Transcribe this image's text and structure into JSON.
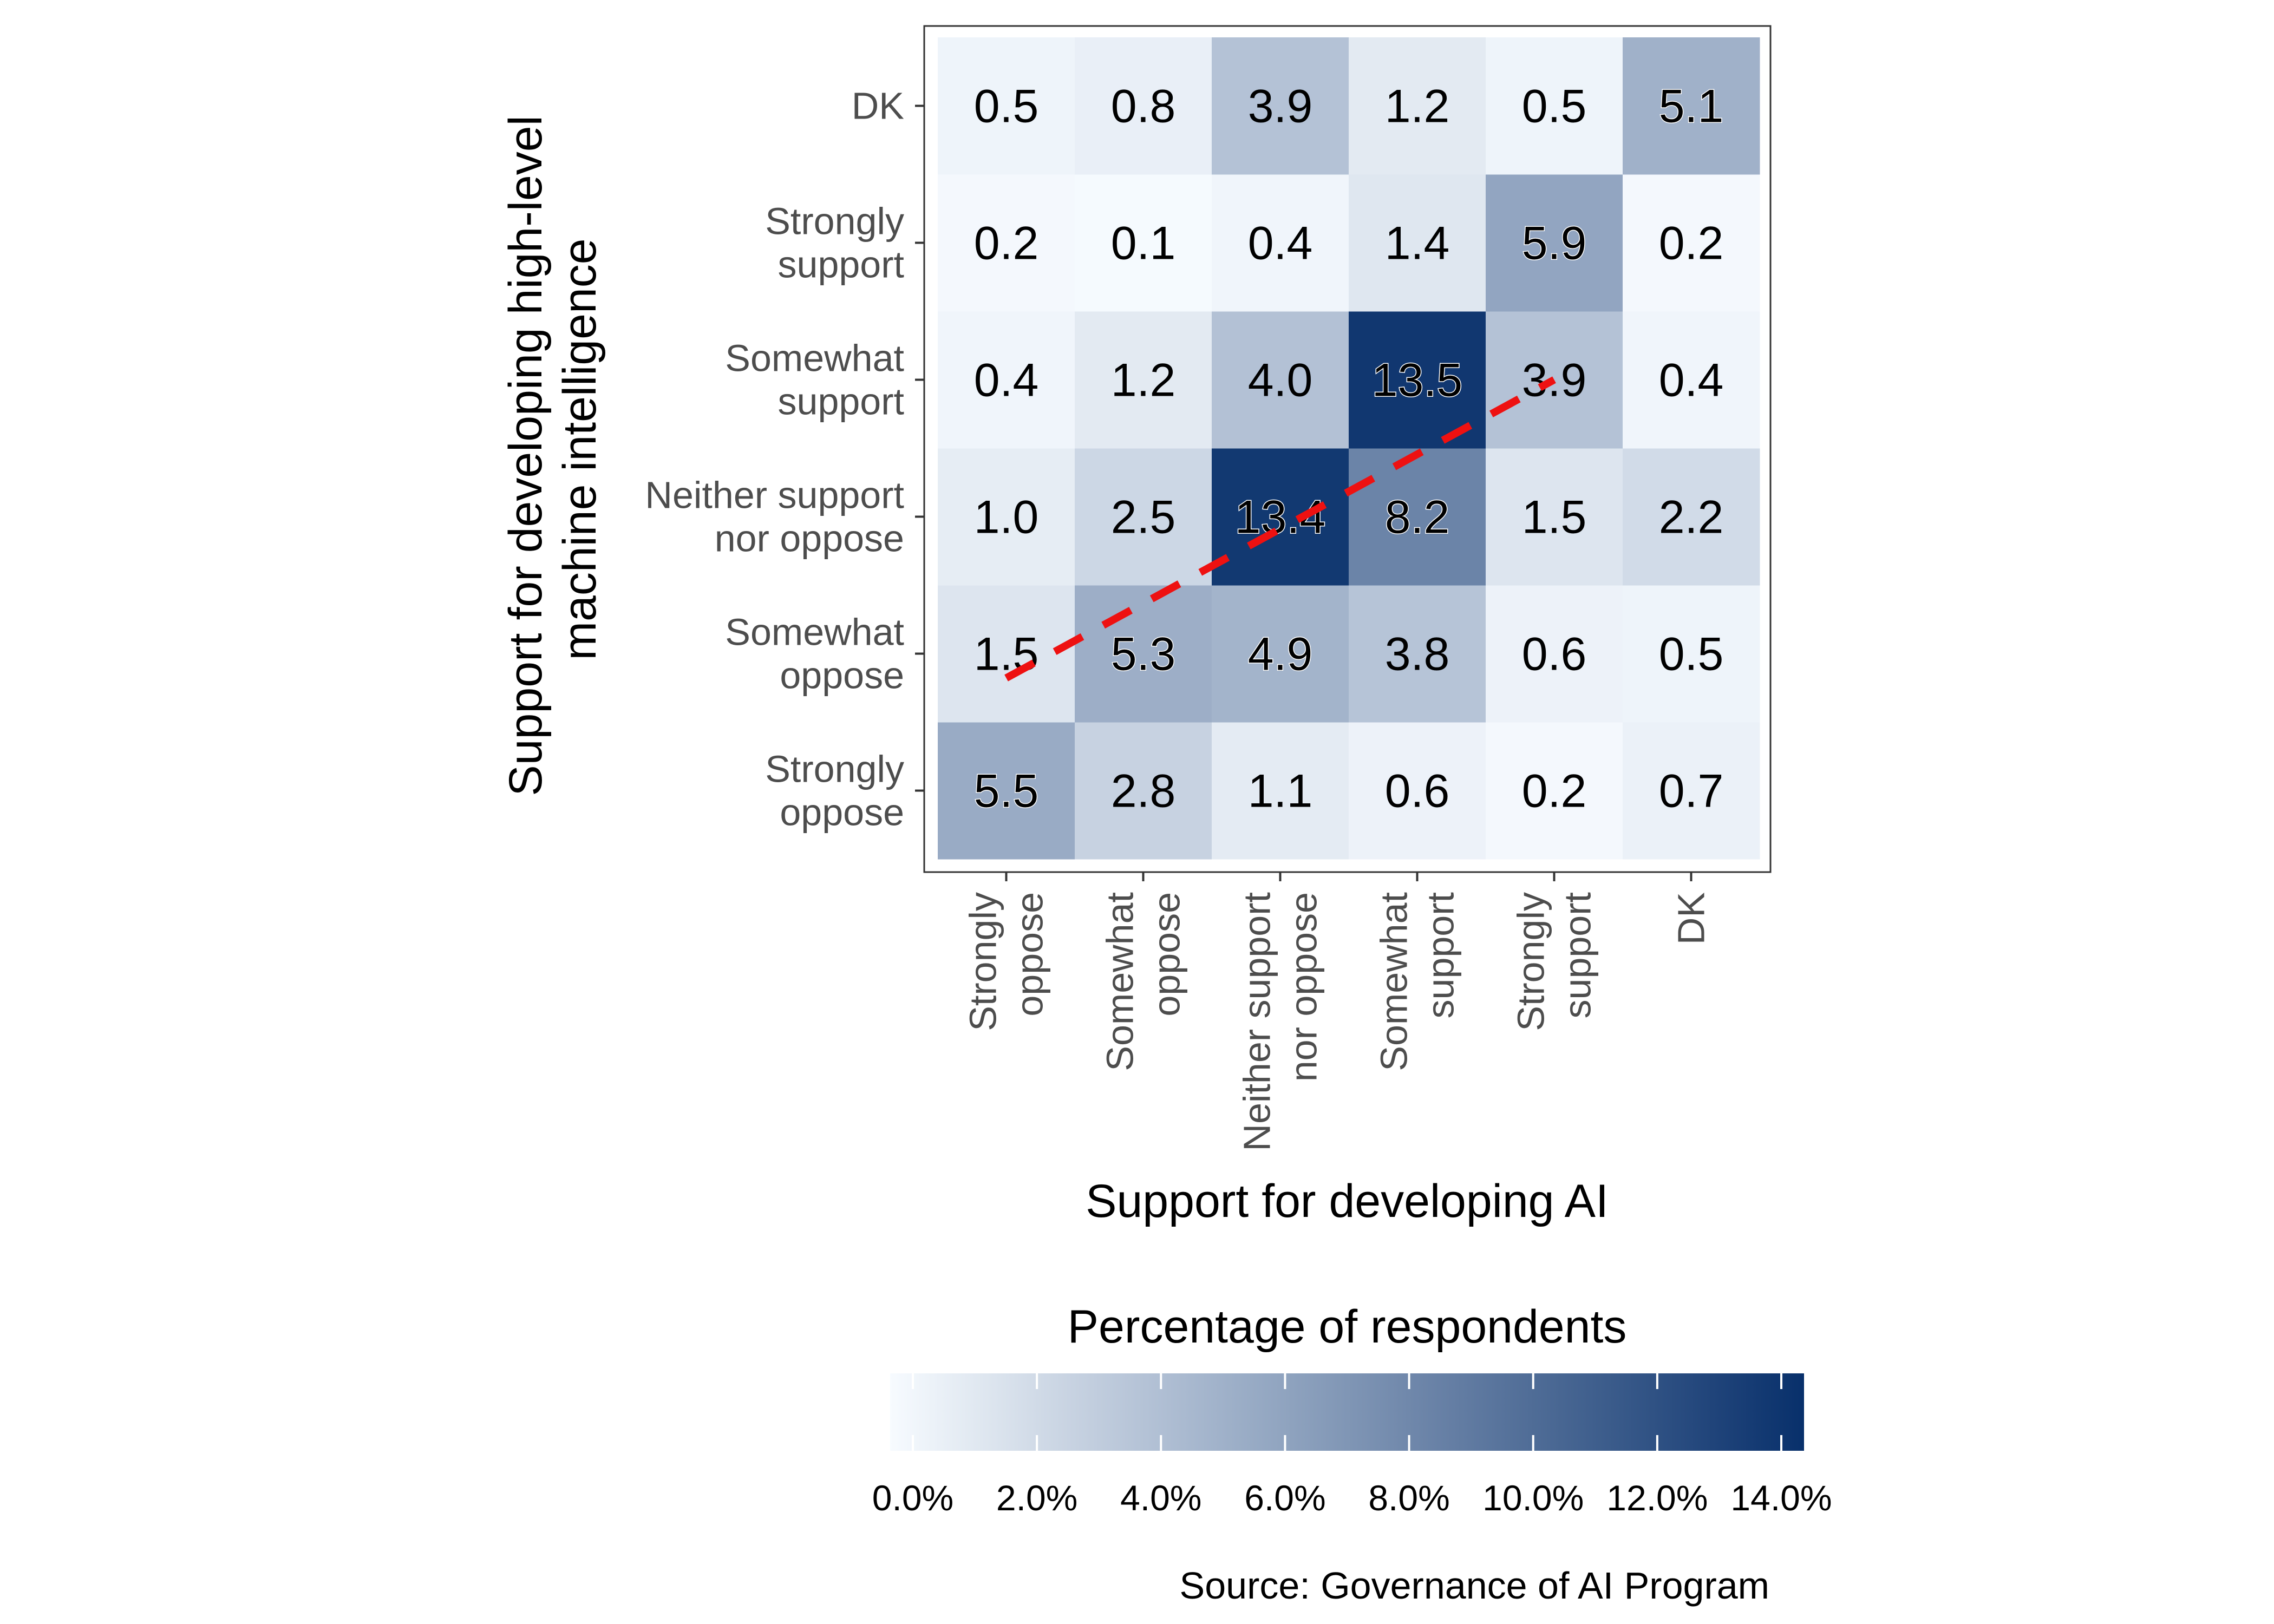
{
  "chart_data": {
    "type": "heatmap",
    "xlabel": "Support for developing AI",
    "ylabel": "Support for developing high-level machine intelligence",
    "x_categories": [
      "Strongly oppose",
      "Somewhat oppose",
      "Neither support nor oppose",
      "Somewhat support",
      "Strongly support",
      "DK"
    ],
    "y_categories": [
      "Strongly oppose",
      "Somewhat oppose",
      "Neither support nor oppose",
      "Somewhat support",
      "Strongly support",
      "DK"
    ],
    "values": [
      [
        5.5,
        2.8,
        1.1,
        0.6,
        0.2,
        0.7
      ],
      [
        1.5,
        5.3,
        4.9,
        3.8,
        0.6,
        0.5
      ],
      [
        1.0,
        2.5,
        13.4,
        8.2,
        1.5,
        2.2
      ],
      [
        0.4,
        1.2,
        4.0,
        13.5,
        3.9,
        0.4
      ],
      [
        0.2,
        0.1,
        0.4,
        1.4,
        5.9,
        0.2
      ],
      [
        0.5,
        0.8,
        3.9,
        1.2,
        0.5,
        5.1
      ]
    ],
    "value_labels": [
      [
        "5.5",
        "2.8",
        "1.1",
        "0.6",
        "0.2",
        "0.7"
      ],
      [
        "1.5",
        "5.3",
        "4.9",
        "3.8",
        "0.6",
        "0.5"
      ],
      [
        "1.0",
        "2.5",
        "13.4",
        "8.2",
        "1.5",
        "2.2"
      ],
      [
        "0.4",
        "1.2",
        "4.0",
        "13.5",
        "3.9",
        "0.4"
      ],
      [
        "0.2",
        "0.1",
        "0.4",
        "1.4",
        "5.9",
        "0.2"
      ],
      [
        "0.5",
        "0.8",
        "3.9",
        "1.2",
        "0.5",
        "5.1"
      ]
    ],
    "diagonal_line": {
      "color": "#ee1111",
      "style": "dashed"
    },
    "color_scale": {
      "low": "#f7fbff",
      "high": "#08306b",
      "range": [
        0,
        14
      ],
      "title": "Percentage of respondents",
      "ticks": [
        0,
        2,
        4,
        6,
        8,
        10,
        12,
        14
      ],
      "tick_labels": [
        "0.0%",
        "2.0%",
        "4.0%",
        "6.0%",
        "8.0%",
        "10.0%",
        "12.0%",
        "14.0%"
      ]
    },
    "caption": "Source: Governance of AI Program"
  }
}
